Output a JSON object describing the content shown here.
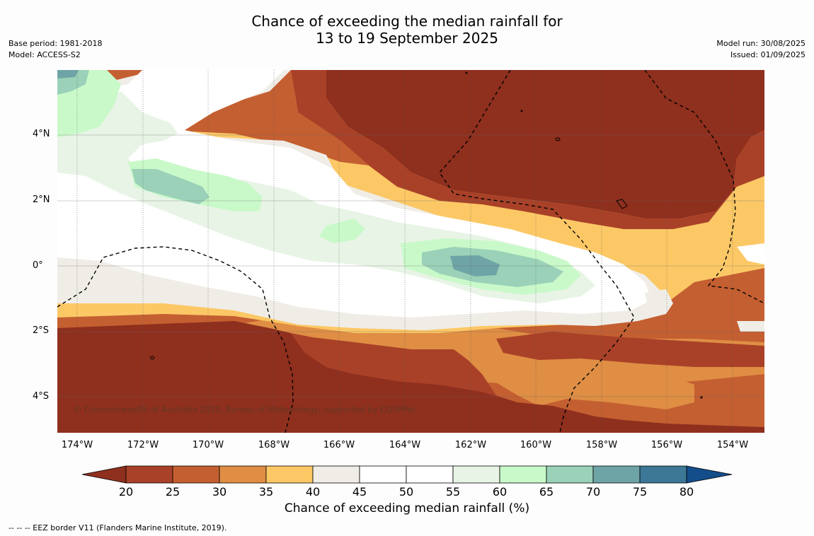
{
  "title_line1": "Chance of exceeding the median rainfall for",
  "title_line2": "13 to 19 September 2025",
  "meta_left": [
    "Base period: 1981-2018",
    "Model: ACCESS-S2"
  ],
  "meta_right": [
    "Model run: 30/08/2025",
    "Issued: 01/09/2025"
  ],
  "lat_labels": [
    "4°N",
    "2°N",
    "0°",
    "2°S",
    "4°S"
  ],
  "lon_labels": [
    "174°W",
    "172°W",
    "170°W",
    "168°W",
    "166°W",
    "164°W",
    "162°W",
    "160°W",
    "158°W",
    "156°W",
    "154°W"
  ],
  "credit": "© Commonwealth of Australia 2025, Bureau of Meteorology, supported by COSPPac",
  "colorbar": {
    "ticks": [
      "20",
      "25",
      "30",
      "35",
      "40",
      "45",
      "50",
      "55",
      "60",
      "65",
      "70",
      "75",
      "80"
    ],
    "colors": [
      "#8f2f1e",
      "#a94128",
      "#c45f31",
      "#df8e44",
      "#fcc866",
      "#f0ede7",
      "#ffffff",
      "#ffffff",
      "#e8f4e6",
      "#c9f9c9",
      "#9ad1b8",
      "#6fa4a7",
      "#3c7896",
      "#134e8b"
    ],
    "title": "Chance of exceeding median rainfall (%)"
  },
  "eez_note": "--  --  -- EEZ border V11 (Flanders Marine Institute, 2019)."
}
